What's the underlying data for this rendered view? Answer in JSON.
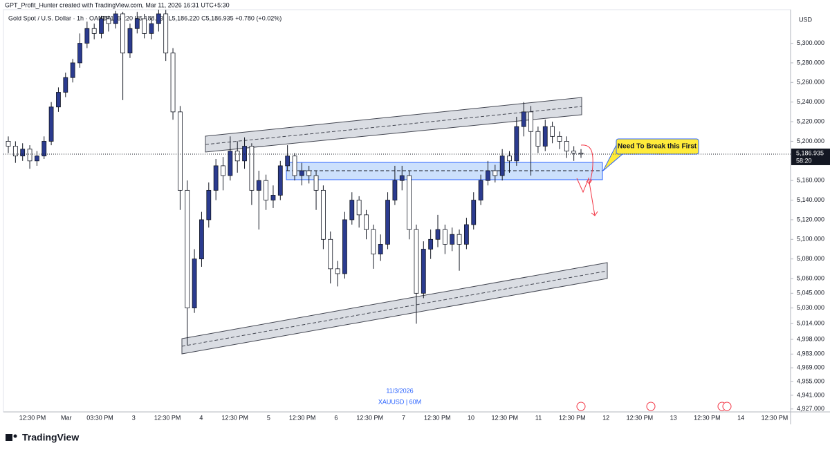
{
  "chart_data": {
    "type": "candlestick",
    "watermark": "GPT_Profit_Hunter created with TradingView.com, Mar 11, 2026 16:31 UTC+5:30",
    "symbol_title": "Gold Spot / U.S. Dollar · 1h · OANDA",
    "ohlc_header": "O5,186.220 H5,188.935 L5,186.220 C5,186.935 +0.780 (+0.02%)",
    "currency": "USD",
    "annotation": "Need To Break this First",
    "date_note": "11/3/2026",
    "symbol_note": "XAUUSD | 60M",
    "brand": "TradingView",
    "countdown": "58:20",
    "last_price": {
      "value": 5186.935,
      "label": "5,186.935"
    },
    "up_color": "#2b3b8f",
    "down_color": "#ffffff",
    "open": [
      5200,
      5195,
      5185,
      5192,
      5180,
      5185,
      5200,
      5235,
      5250,
      5265,
      5280,
      5300,
      5315,
      5310,
      5325,
      5320,
      5330,
      5290,
      5315,
      5325,
      5310,
      5320,
      5330,
      5290,
      5230,
      5150,
      5030,
      5080,
      5120,
      5150,
      5175,
      5165,
      5190,
      5180,
      5195,
      5150,
      5160,
      5140,
      5145,
      5175,
      5185,
      5165,
      5170,
      5165,
      5150,
      5100,
      5070,
      5065,
      5120,
      5140,
      5125,
      5110,
      5085,
      5095,
      5140,
      5160,
      5165,
      5110,
      5045,
      5090,
      5100,
      5110,
      5095,
      5105,
      5095,
      5115,
      5140,
      5160,
      5170,
      5165,
      5185,
      5180,
      5215,
      5230,
      5210,
      5195,
      5215,
      5205,
      5200,
      5190,
      5188
    ],
    "high": [
      5205,
      5200,
      5198,
      5196,
      5190,
      5205,
      5240,
      5255,
      5270,
      5284,
      5310,
      5322,
      5320,
      5328,
      5328,
      5333,
      5332,
      5320,
      5332,
      5330,
      5326,
      5335,
      5334,
      5295,
      5236,
      5160,
      5090,
      5128,
      5158,
      5182,
      5184,
      5205,
      5200,
      5204,
      5198,
      5170,
      5166,
      5155,
      5180,
      5196,
      5188,
      5178,
      5175,
      5170,
      5155,
      5108,
      5078,
      5128,
      5148,
      5144,
      5130,
      5115,
      5105,
      5148,
      5175,
      5175,
      5170,
      5115,
      5098,
      5110,
      5125,
      5115,
      5112,
      5110,
      5122,
      5148,
      5166,
      5180,
      5176,
      5192,
      5190,
      5225,
      5240,
      5236,
      5215,
      5222,
      5220,
      5210,
      5205,
      5195,
      5192
    ],
    "low": [
      5188,
      5178,
      5180,
      5172,
      5175,
      5182,
      5196,
      5230,
      5245,
      5260,
      5275,
      5295,
      5304,
      5305,
      5312,
      5315,
      5242,
      5285,
      5310,
      5305,
      5304,
      5312,
      5282,
      5222,
      5130,
      4992,
      5025,
      5072,
      5112,
      5140,
      5150,
      5160,
      5168,
      5172,
      5135,
      5110,
      5130,
      5132,
      5140,
      5170,
      5160,
      5155,
      5157,
      5130,
      5090,
      5055,
      5052,
      5060,
      5115,
      5112,
      5100,
      5070,
      5078,
      5090,
      5135,
      5150,
      5100,
      5014,
      5040,
      5080,
      5092,
      5085,
      5088,
      5068,
      5090,
      5110,
      5135,
      5155,
      5158,
      5160,
      5168,
      5175,
      5205,
      5165,
      5188,
      5190,
      5198,
      5192,
      5183,
      5180,
      5183
    ],
    "close": [
      5195,
      5185,
      5192,
      5180,
      5185,
      5200,
      5235,
      5250,
      5265,
      5280,
      5300,
      5315,
      5310,
      5325,
      5320,
      5330,
      5290,
      5315,
      5325,
      5310,
      5320,
      5330,
      5290,
      5230,
      5150,
      5030,
      5080,
      5120,
      5150,
      5175,
      5165,
      5190,
      5180,
      5195,
      5150,
      5160,
      5140,
      5145,
      5175,
      5185,
      5165,
      5170,
      5165,
      5150,
      5100,
      5070,
      5065,
      5120,
      5140,
      5125,
      5110,
      5085,
      5095,
      5140,
      5160,
      5165,
      5110,
      5045,
      5090,
      5100,
      5110,
      5095,
      5105,
      5095,
      5115,
      5140,
      5160,
      5170,
      5165,
      5185,
      5180,
      5215,
      5230,
      5210,
      5195,
      5215,
      5205,
      5200,
      5190,
      5188,
      5187
    ],
    "ylim": [
      4924,
      5330
    ],
    "yticks": [
      {
        "value": 5300,
        "label": "5,300.000"
      },
      {
        "value": 5280,
        "label": "5,280.000"
      },
      {
        "value": 5260,
        "label": "5,260.000"
      },
      {
        "value": 5240,
        "label": "5,240.000"
      },
      {
        "value": 5220,
        "label": "5,220.000"
      },
      {
        "value": 5200,
        "label": "5,200.000"
      },
      {
        "value": 5160,
        "label": "5,160.000"
      },
      {
        "value": 5140,
        "label": "5,140.000"
      },
      {
        "value": 5120,
        "label": "5,120.000"
      },
      {
        "value": 5100,
        "label": "5,100.000"
      },
      {
        "value": 5080,
        "label": "5,080.000"
      },
      {
        "value": 5060,
        "label": "5,060.000"
      },
      {
        "value": 5045,
        "label": "5,045.000"
      },
      {
        "value": 5030,
        "label": "5,030.000"
      },
      {
        "value": 5014,
        "label": "5,014.000"
      },
      {
        "value": 4998,
        "label": "4,998.000"
      },
      {
        "value": 4983,
        "label": "4,983.000"
      },
      {
        "value": 4969,
        "label": "4,969.000"
      },
      {
        "value": 4955,
        "label": "4,955.000"
      },
      {
        "value": 4941,
        "label": "4,941.000"
      },
      {
        "value": 4927,
        "label": "4,927.000"
      }
    ],
    "x_axis_labels": [
      "12:30 PM",
      "Mar",
      "03:30 PM",
      "3",
      "12:30 PM",
      "4",
      "12:30 PM",
      "5",
      "12:30 PM",
      "6",
      "12:30 PM",
      "7",
      "12:30 PM",
      "10",
      "12:30 PM",
      "11",
      "12:30 PM",
      "12",
      "12:30 PM",
      "13",
      "12:30 PM",
      "14",
      "12:30 PM"
    ]
  }
}
